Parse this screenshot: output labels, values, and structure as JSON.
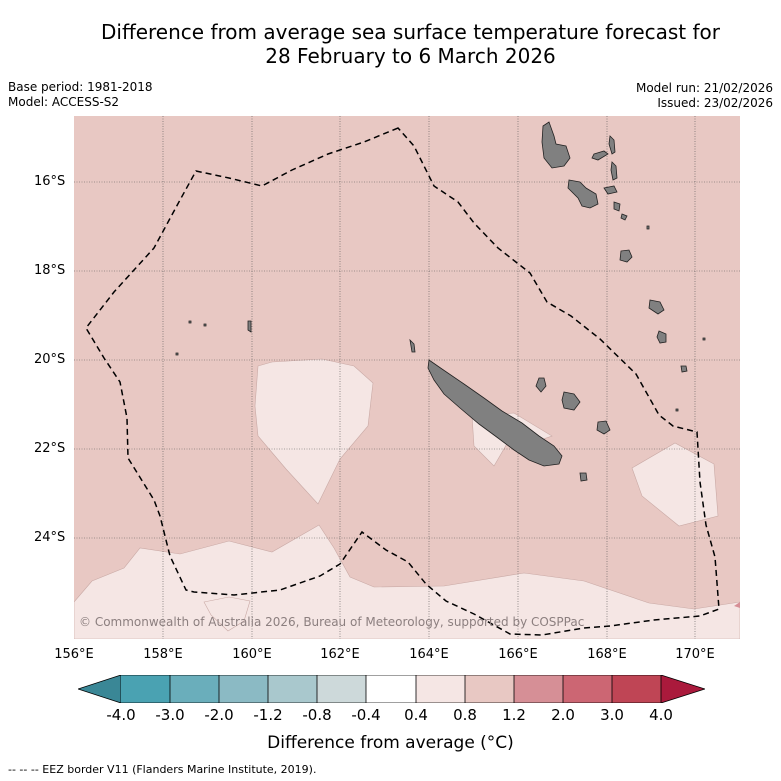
{
  "title": {
    "line1": "Difference from average sea surface temperature forecast for",
    "line2": "28 February to 6 March 2026"
  },
  "meta": {
    "base_period": "Base period: 1981-2018",
    "model": "Model: ACCESS-S2",
    "model_run": "Model run: 21/02/2026",
    "issued": "Issued: 23/02/2026"
  },
  "map": {
    "copyright": "© Commonwealth of Australia 2026, Bureau of Meteorology, supported by COSPPac",
    "lon_ticks": [
      "156°E",
      "158°E",
      "160°E",
      "162°E",
      "164°E",
      "166°E",
      "168°E",
      "170°E"
    ],
    "lat_ticks": [
      "16°S",
      "18°S",
      "20°S",
      "22°S",
      "24°S"
    ],
    "background_anomaly": "0.8 to 1.2",
    "colors": {
      "warm_fill": "#e8c8c3",
      "mild_fill": "#f5e6e4",
      "land": "#808080",
      "grid": "#555555"
    }
  },
  "colorbar": {
    "ticks": [
      "-4.0",
      "-3.0",
      "-2.0",
      "-1.2",
      "-0.8",
      "-0.4",
      "0.4",
      "0.8",
      "1.2",
      "2.0",
      "3.0",
      "4.0"
    ],
    "colors": [
      "#3a8796",
      "#4aa2b2",
      "#6aaebb",
      "#8bbac4",
      "#a9c8cd",
      "#cdd9da",
      "#ffffff",
      "#f5e6e4",
      "#e8c8c3",
      "#d68f96",
      "#cc6673",
      "#bf4555",
      "#aa1a3c"
    ],
    "label": "Difference from average (°C)"
  },
  "footnote": "--  --  -- EEZ border V11 (Flanders Marine Institute, 2019)."
}
